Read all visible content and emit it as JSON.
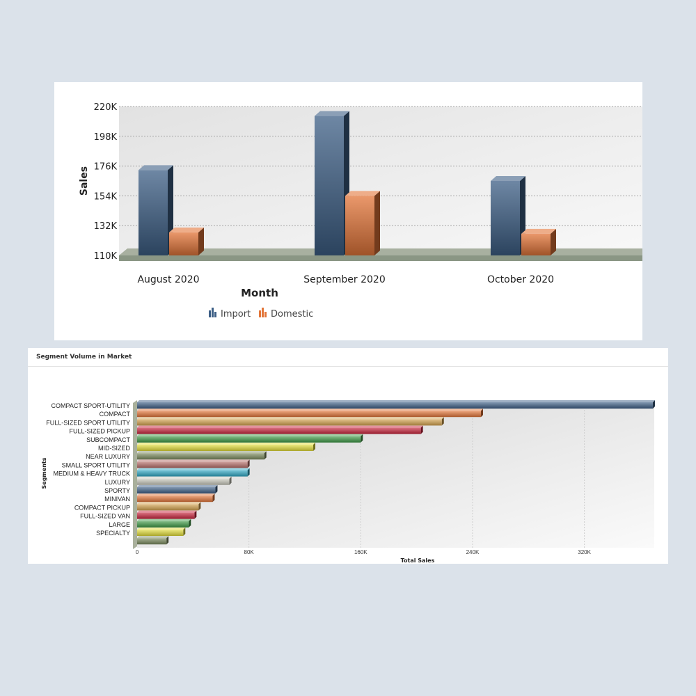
{
  "chart_data": [
    {
      "type": "bar",
      "title": "",
      "xlabel": "Month",
      "ylabel": "Sales",
      "categories": [
        "August 2020",
        "September 2020",
        "October 2020"
      ],
      "ylim": [
        110000,
        220000
      ],
      "yticks": [
        "110K",
        "132K",
        "154K",
        "176K",
        "198K",
        "220K"
      ],
      "ytick_values": [
        110000,
        132000,
        154000,
        176000,
        198000,
        220000
      ],
      "grid": true,
      "legend_position": "bottom",
      "series": [
        {
          "name": "Import",
          "color": "#3d5f86",
          "values": [
            173000,
            213000,
            165000
          ]
        },
        {
          "name": "Domestic",
          "color": "#e3763a",
          "values": [
            127000,
            154000,
            126000
          ]
        }
      ]
    },
    {
      "type": "bar",
      "orientation": "horizontal",
      "title": "Segment Volume in Market",
      "xlabel": "Total Sales",
      "ylabel": "Segments",
      "xlim": [
        0,
        370000
      ],
      "xticks": [
        "0",
        "80K",
        "160K",
        "240K",
        "320K"
      ],
      "xtick_values": [
        0,
        80000,
        160000,
        240000,
        320000
      ],
      "grid": true,
      "categories": [
        "COMPACT SPORT-UTILITY",
        "COMPACT",
        "FULL-SIZED SPORT UTILITY",
        "FULL-SIZED PICKUP",
        "SUBCOMPACT",
        "MID-SIZED",
        "NEAR LUXURY",
        "SMALL SPORT UTILITY",
        "MEDIUM & HEAVY TRUCK",
        "LUXURY",
        "SPORTY",
        "MINIVAN",
        "COMPACT PICKUP",
        "FULL-SIZED VAN",
        "LARGE",
        "SPECIALTY",
        ""
      ],
      "values": [
        369000,
        246000,
        218000,
        203000,
        160000,
        126000,
        91000,
        79000,
        79000,
        66000,
        56000,
        54000,
        44000,
        41000,
        37000,
        33000,
        21000
      ],
      "colors": [
        "#3d5f86",
        "#e3763a",
        "#d4a24e",
        "#c8243c",
        "#3f9a46",
        "#e2dd3a",
        "#7b8a5e",
        "#b8706a",
        "#2fa8c4",
        "#c9c9bd",
        "#3d5f86",
        "#e3763a",
        "#d4a24e",
        "#c8243c",
        "#3f9a46",
        "#e2dd3a",
        "#7b8a5e"
      ]
    }
  ]
}
